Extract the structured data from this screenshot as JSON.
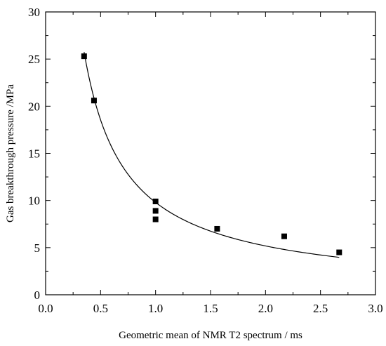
{
  "chart_data": {
    "type": "scatter",
    "xlabel": "Geometric mean of NMR T2 spectrum / ms",
    "ylabel": "Gas breakthrough pressure /MPa",
    "xlim": [
      0.0,
      3.0
    ],
    "ylim": [
      0,
      30
    ],
    "x_ticks": [
      "0.0",
      "0.5",
      "1.0",
      "1.5",
      "2.0",
      "2.5",
      "3.0"
    ],
    "y_ticks": [
      "0",
      "5",
      "10",
      "15",
      "20",
      "25",
      "30"
    ],
    "grid": false,
    "legend": "none",
    "marker_color": "#000000",
    "series": [
      {
        "points": [
          {
            "x": 0.35,
            "y": 25.3
          },
          {
            "x": 0.44,
            "y": 20.6
          },
          {
            "x": 1.0,
            "y": 9.9
          },
          {
            "x": 1.0,
            "y": 8.9
          },
          {
            "x": 1.0,
            "y": 8.0
          },
          {
            "x": 1.56,
            "y": 7.0
          },
          {
            "x": 2.17,
            "y": 6.2
          },
          {
            "x": 2.67,
            "y": 4.5
          }
        ]
      }
    ],
    "fit_curve": {
      "type": "power",
      "a": 9.8,
      "b": -0.92,
      "x_range": [
        0.35,
        2.67
      ]
    }
  }
}
